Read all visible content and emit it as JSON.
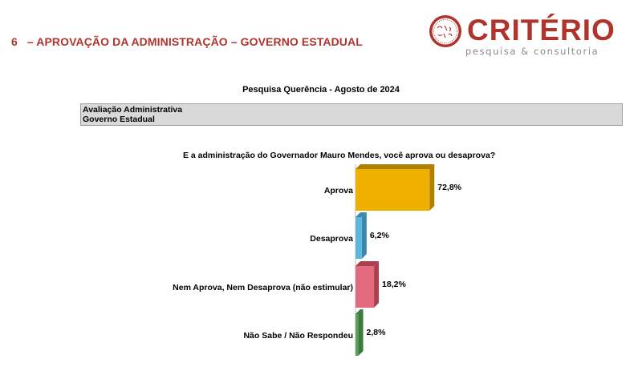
{
  "header": {
    "number": "6",
    "title": "– APROVAÇÃO DA ADMINISTRAÇÃO – GOVERNO ESTADUAL"
  },
  "logo": {
    "name": "CRITÉRIO",
    "tagline": "pesquisa & consultoria",
    "seal_text": "BRASIL 2003"
  },
  "survey_title": "Pesquisa Querência - Agosto de 2024",
  "section": {
    "line1": "Avaliação Administrativa",
    "line2": "Governo Estadual"
  },
  "chart_data": {
    "type": "bar",
    "orientation": "horizontal",
    "title": "E a administração do Governador Mauro Mendes, você aprova ou desaprova?",
    "categories": [
      "Aprova",
      "Desaprova",
      "Nem Aprova, Nem Desaprova (não estimular)",
      "Não Sabe / Não Respondeu"
    ],
    "values": [
      72.8,
      6.2,
      18.2,
      2.8
    ],
    "value_labels": [
      "72,8%",
      "6,2%",
      "18,2%",
      "2,8%"
    ],
    "unit": "%",
    "xlim": [
      0,
      100
    ],
    "colors": [
      "#f0b000",
      "#5bb7dc",
      "#e46a7e",
      "#5aa05a"
    ],
    "side_colors": [
      "#b08000",
      "#3a88ad",
      "#a8404f",
      "#3c7a3c"
    ],
    "grid": false,
    "legend": "none"
  }
}
